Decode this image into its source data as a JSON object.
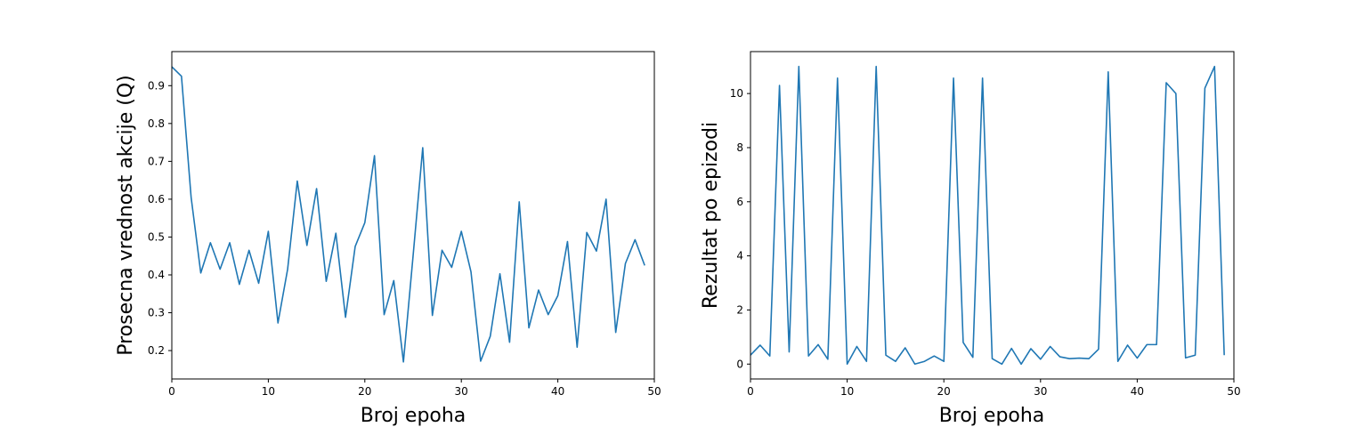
{
  "chart_data": [
    {
      "type": "line",
      "xlabel": "Broj epoha",
      "ylabel": "Prosecna vrednost akcije (Q)",
      "xlim": [
        0,
        50
      ],
      "ylim": [
        0.125,
        0.99
      ],
      "xticks": [
        0,
        10,
        20,
        30,
        40,
        50
      ],
      "yticks": [
        0.2,
        0.3,
        0.4,
        0.5,
        0.6,
        0.7,
        0.8,
        0.9
      ],
      "grid": false,
      "line_color": "#1f77b4",
      "series": [
        {
          "x": [
            0,
            1,
            2,
            3,
            4,
            5,
            6,
            7,
            8,
            9,
            10,
            11,
            12,
            13,
            14,
            15,
            16,
            17,
            18,
            19,
            20,
            21,
            22,
            23,
            24,
            25,
            26,
            27,
            28,
            29,
            30,
            31,
            32,
            33,
            34,
            35,
            36,
            37,
            38,
            39,
            40,
            41,
            42,
            43,
            44,
            45,
            46,
            47,
            48,
            49
          ],
          "values": [
            0.95,
            0.925,
            0.605,
            0.405,
            0.485,
            0.415,
            0.485,
            0.375,
            0.465,
            0.378,
            0.515,
            0.273,
            0.415,
            0.648,
            0.478,
            0.628,
            0.383,
            0.51,
            0.288,
            0.475,
            0.538,
            0.715,
            0.295,
            0.385,
            0.17,
            0.45,
            0.736,
            0.293,
            0.465,
            0.42,
            0.515,
            0.408,
            0.172,
            0.238,
            0.403,
            0.222,
            0.593,
            0.26,
            0.36,
            0.295,
            0.345,
            0.488,
            0.209,
            0.512,
            0.463,
            0.6,
            0.248,
            0.43,
            0.493,
            0.425
          ]
        }
      ]
    },
    {
      "type": "line",
      "xlabel": "Broj epoha",
      "ylabel": "Rezultat po epizodi",
      "xlim": [
        0,
        50
      ],
      "ylim": [
        -0.55,
        11.55
      ],
      "xticks": [
        0,
        10,
        20,
        30,
        40,
        50
      ],
      "yticks": [
        0,
        2,
        4,
        6,
        8,
        10
      ],
      "grid": false,
      "line_color": "#1f77b4",
      "series": [
        {
          "x": [
            0,
            1,
            2,
            3,
            4,
            5,
            6,
            7,
            8,
            9,
            10,
            11,
            12,
            13,
            14,
            15,
            16,
            17,
            18,
            19,
            20,
            21,
            22,
            23,
            24,
            25,
            26,
            27,
            28,
            29,
            30,
            31,
            32,
            33,
            34,
            35,
            36,
            37,
            38,
            39,
            40,
            41,
            42,
            43,
            44,
            45,
            46,
            47,
            48,
            49
          ],
          "values": [
            0.33,
            0.7,
            0.3,
            10.3,
            0.45,
            11.0,
            0.3,
            0.72,
            0.18,
            10.57,
            0.0,
            0.65,
            0.1,
            11.0,
            0.33,
            0.1,
            0.6,
            0.0,
            0.1,
            0.3,
            0.1,
            10.57,
            0.8,
            0.25,
            10.57,
            0.2,
            0.0,
            0.58,
            0.0,
            0.57,
            0.18,
            0.65,
            0.27,
            0.2,
            0.22,
            0.2,
            0.55,
            10.8,
            0.1,
            0.7,
            0.22,
            0.72,
            0.72,
            10.4,
            10.0,
            0.23,
            0.33,
            10.2,
            11.0,
            0.33
          ]
        }
      ]
    }
  ]
}
